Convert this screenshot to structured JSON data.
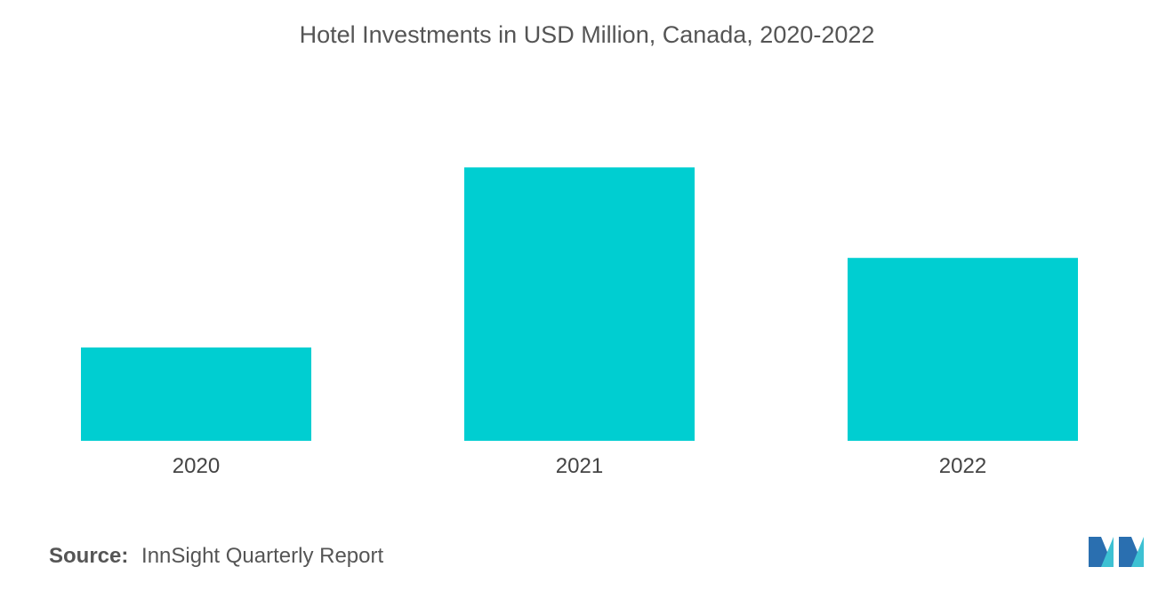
{
  "chart_data": {
    "type": "bar",
    "title": "Hotel Investments in USD Million, Canada, 2020-2022",
    "categories": [
      "2020",
      "2021",
      "2022"
    ],
    "values": [
      1.0,
      2.93,
      1.96
    ],
    "xlabel": "",
    "ylabel": "",
    "ylim": [
      0,
      3.2
    ],
    "grid": false,
    "legend": "none",
    "bar_color": "#00CED1"
  },
  "source": {
    "label": "Source:",
    "text": "InnSight Quarterly Report"
  },
  "logo": {
    "icon": "mordor-intelligence-logo-icon",
    "colors": [
      "#2A6FB0",
      "#3DC1D3"
    ]
  }
}
